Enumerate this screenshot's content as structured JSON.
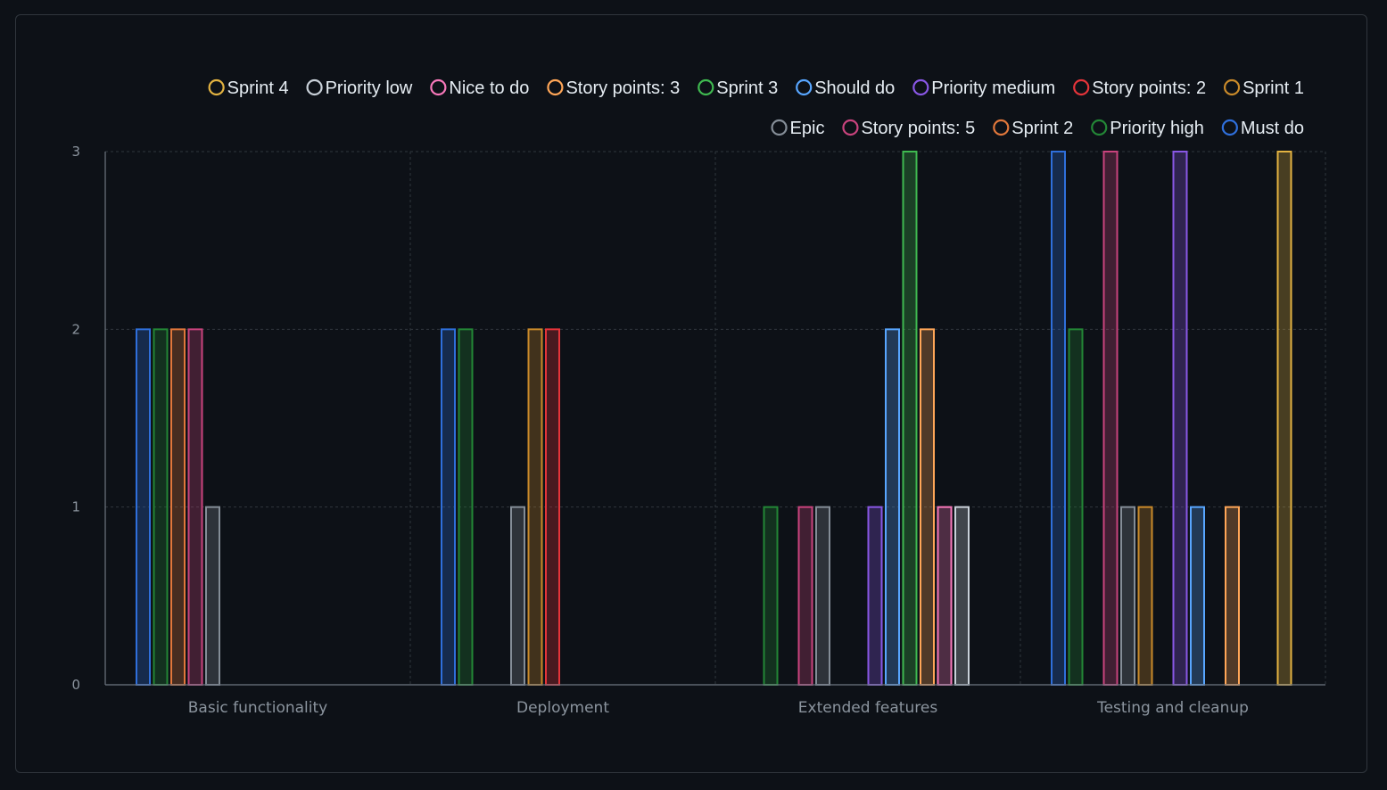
{
  "chart_data": {
    "type": "bar",
    "title": "",
    "xlabel": "",
    "ylabel": "",
    "ylim": [
      0,
      3
    ],
    "yticks": [
      0,
      1,
      2,
      3
    ],
    "grid": true,
    "legend_position": "top",
    "categories": [
      "Basic functionality",
      "Deployment",
      "Extended features",
      "Testing and cleanup"
    ],
    "series": [
      {
        "name": "Must do",
        "color": "#2f6fdb",
        "values": [
          2,
          2,
          0,
          3
        ]
      },
      {
        "name": "Priority high",
        "color": "#238636",
        "values": [
          2,
          2,
          1,
          2
        ]
      },
      {
        "name": "Sprint 2",
        "color": "#e0773b",
        "values": [
          2,
          0,
          0,
          0
        ]
      },
      {
        "name": "Story points: 5",
        "color": "#c9437d",
        "values": [
          2,
          0,
          1,
          3
        ]
      },
      {
        "name": "Epic",
        "color": "#848d97",
        "values": [
          1,
          1,
          1,
          1
        ]
      },
      {
        "name": "Sprint 1",
        "color": "#c98a2a",
        "values": [
          0,
          2,
          0,
          1
        ]
      },
      {
        "name": "Story points: 2",
        "color": "#e5343a",
        "values": [
          0,
          2,
          0,
          0
        ]
      },
      {
        "name": "Priority medium",
        "color": "#8957e5",
        "values": [
          0,
          0,
          1,
          3
        ]
      },
      {
        "name": "Should do",
        "color": "#58a6ff",
        "values": [
          0,
          0,
          2,
          1
        ]
      },
      {
        "name": "Sprint 3",
        "color": "#3fb950",
        "values": [
          0,
          0,
          3,
          0
        ]
      },
      {
        "name": "Story points: 3",
        "color": "#ffa657",
        "values": [
          0,
          0,
          2,
          1
        ]
      },
      {
        "name": "Nice to do",
        "color": "#f778ba",
        "values": [
          0,
          0,
          1,
          0
        ]
      },
      {
        "name": "Priority low",
        "color": "#c9d1d9",
        "values": [
          0,
          0,
          1,
          0
        ]
      },
      {
        "name": "Sprint 4",
        "color": "#e3b341",
        "values": [
          0,
          0,
          0,
          3
        ]
      }
    ]
  }
}
